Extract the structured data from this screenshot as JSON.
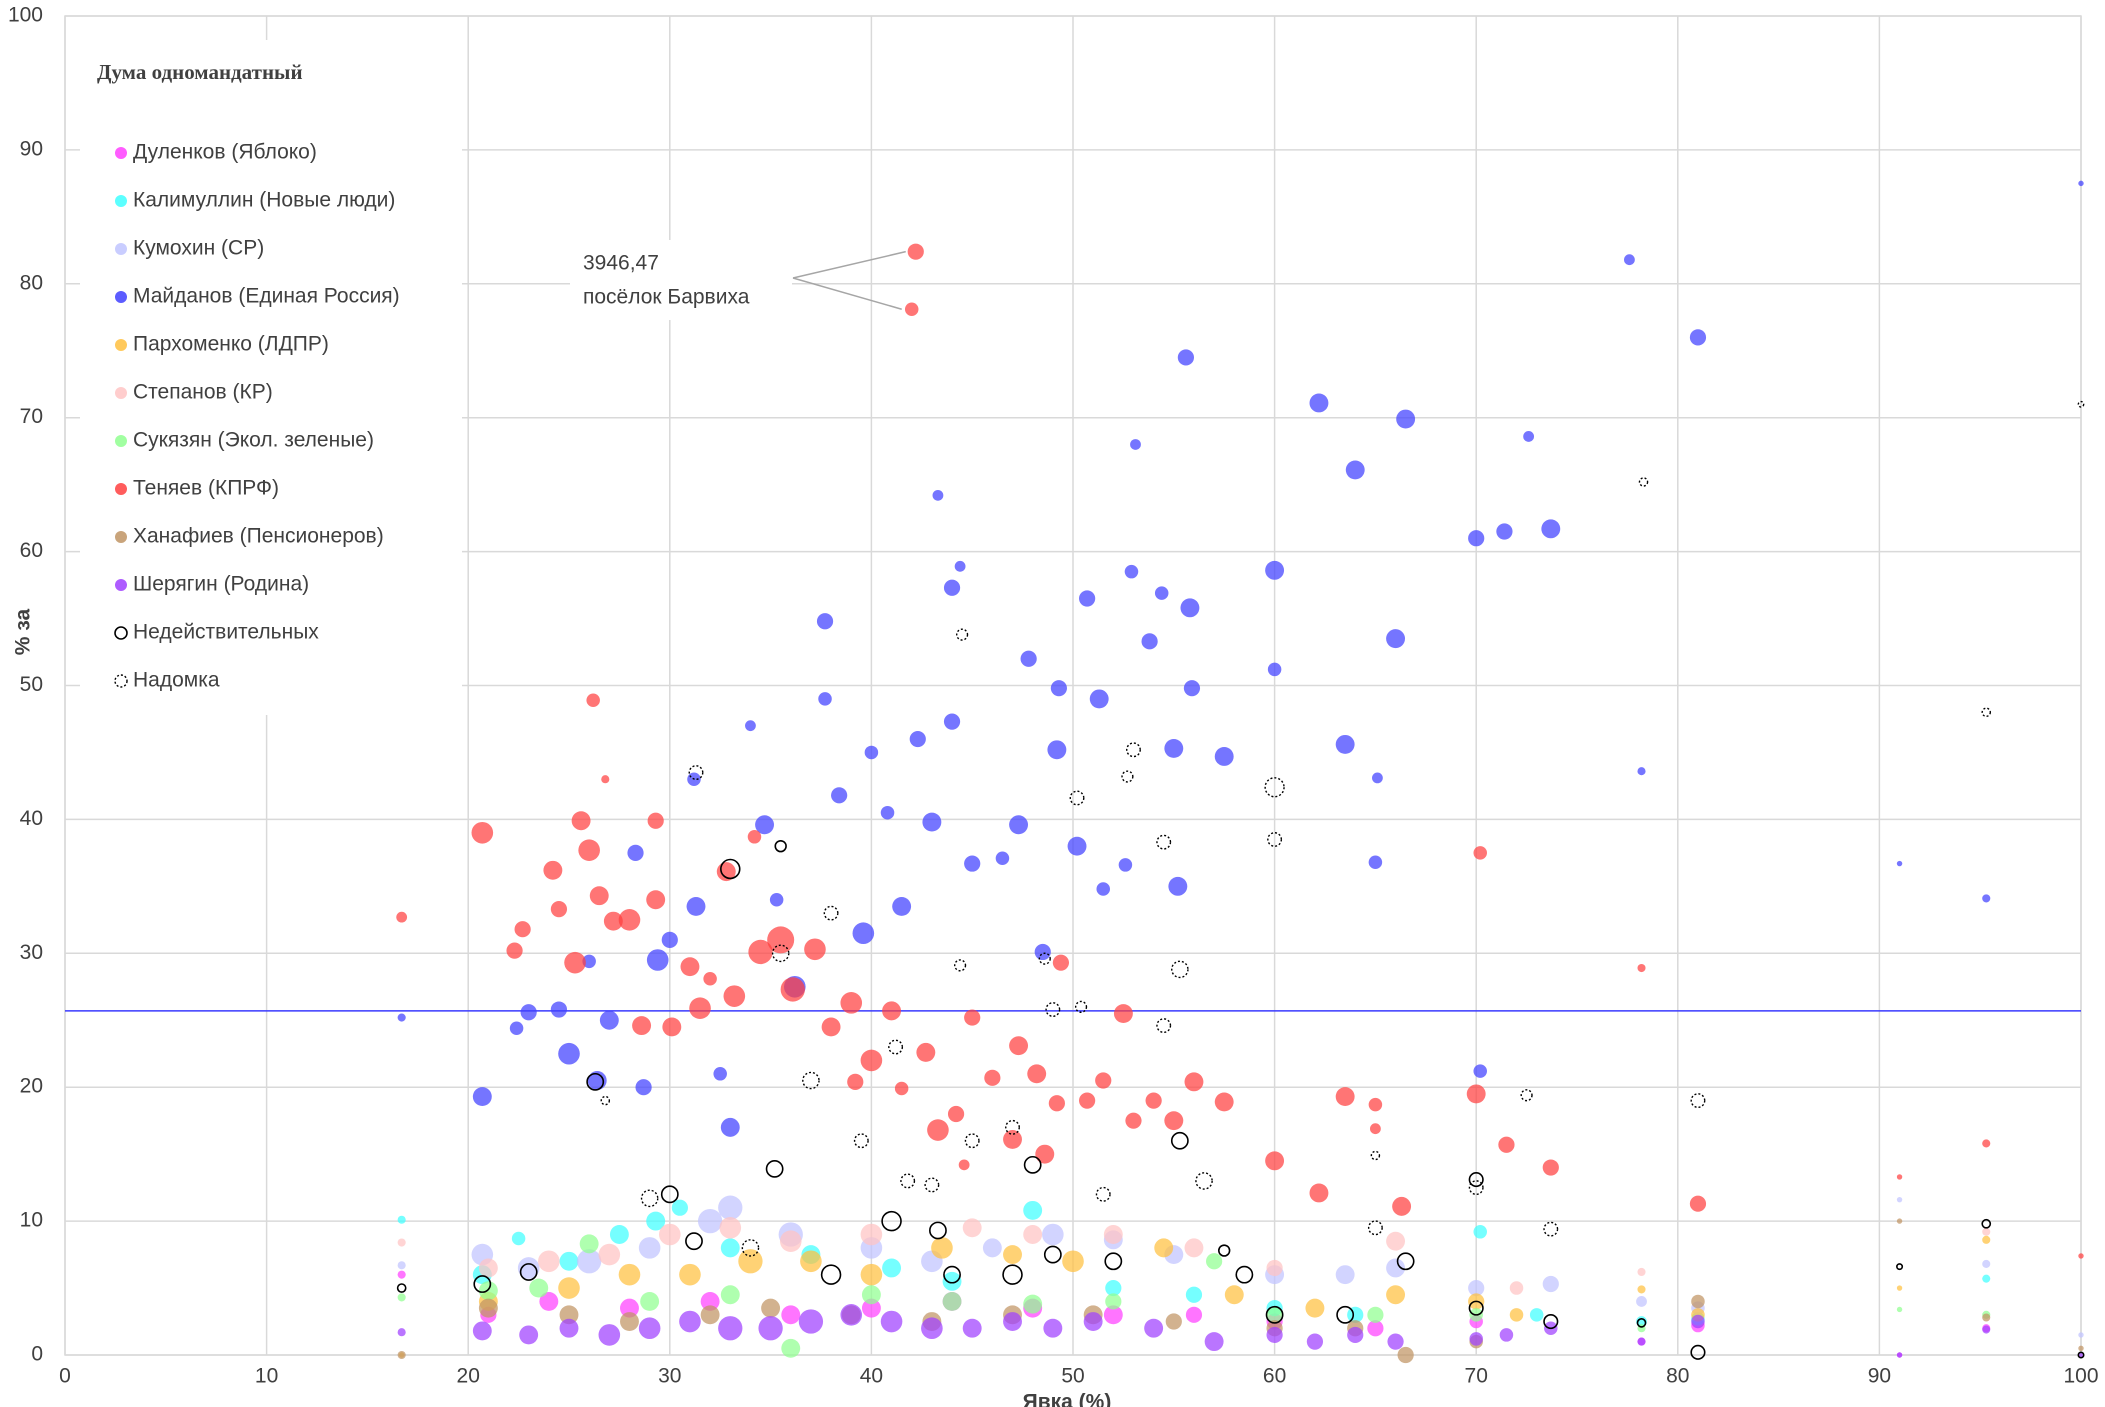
{
  "chart_data": {
    "type": "bubble",
    "title": "Дума одномандатный",
    "x_label": "Явка (%)",
    "y_label": "% за",
    "xlim": [
      0,
      100
    ],
    "ylim": [
      0,
      100
    ],
    "xticks": [
      0,
      10,
      20,
      30,
      40,
      50,
      60,
      70,
      80,
      90,
      100
    ],
    "yticks": [
      0,
      10,
      20,
      30,
      40,
      50,
      60,
      70,
      80,
      90,
      100
    ],
    "grid": true,
    "legend": "upper left",
    "reference_line": {
      "y": 25.7,
      "color": "#3a3aff"
    },
    "annotation": {
      "lines": [
        "3946,47",
        "посёлок Барвиха"
      ],
      "series": 7,
      "points": [
        34,
        35
      ]
    },
    "series": [
      {
        "name": "Дуленков (Яблоко)",
        "color": "#ff40ff",
        "marker": "filled",
        "x": [
          16.7,
          21,
          24,
          28,
          32,
          36,
          40,
          44,
          48,
          52,
          56,
          60,
          65,
          70,
          78.2,
          81,
          91,
          95.3
        ],
        "values": [
          6,
          3,
          4,
          3.5,
          4,
          3,
          3.5,
          4,
          3.5,
          3,
          3,
          2.5,
          2,
          2.5,
          1,
          2.2,
          0,
          2
        ],
        "sizes": [
          3,
          6,
          7,
          7,
          7,
          7,
          7,
          7,
          7,
          7,
          6,
          6,
          6,
          5,
          3,
          5,
          2,
          3
        ]
      },
      {
        "name": "Калимуллин (Новые люди)",
        "color": "#40ffff",
        "marker": "filled",
        "x": [
          16.7,
          20.7,
          22.5,
          25,
          27.5,
          29.3,
          30.5,
          33,
          37,
          41,
          44,
          48,
          52,
          56,
          60,
          64,
          70.2,
          73,
          78.2,
          81,
          95.3
        ],
        "values": [
          10.1,
          6,
          8.7,
          7,
          9,
          10,
          11,
          8,
          7.5,
          6.5,
          5.5,
          10.8,
          5,
          4.5,
          3.5,
          3,
          9.2,
          3,
          2.5,
          2.7,
          5.7
        ],
        "sizes": [
          3,
          7,
          5,
          7,
          7,
          7,
          6,
          7,
          7,
          7,
          7,
          7,
          6,
          6,
          6,
          6,
          5,
          5,
          4,
          5,
          3
        ]
      },
      {
        "name": "Кумохин (СР)",
        "color": "#c0c4ff",
        "marker": "filled",
        "x": [
          16.7,
          20.7,
          23,
          26,
          29,
          32,
          33,
          36,
          40,
          43,
          46,
          49,
          52,
          55,
          60,
          63.5,
          66,
          70,
          73.7,
          78.2,
          81,
          91,
          95.3,
          100
        ],
        "values": [
          6.7,
          7.5,
          6.5,
          7,
          8,
          10,
          11,
          9,
          8,
          7,
          8,
          9,
          8.6,
          7.5,
          6,
          6,
          6.5,
          5,
          5.3,
          4,
          3.5,
          11.6,
          6.8,
          1.5
        ],
        "sizes": [
          3,
          8,
          8,
          9,
          8,
          9,
          9,
          9,
          8,
          8,
          7,
          8,
          7,
          7,
          7,
          7,
          7,
          6,
          6,
          4,
          5,
          2,
          3,
          2
        ]
      },
      {
        "name": "Майданов (Единая Россия)",
        "color": "#4040ff",
        "marker": "filled",
        "x": [
          16.7,
          20.7,
          22.4,
          23,
          24.5,
          25,
          26,
          26.4,
          27,
          28.3,
          28.7,
          29.4,
          30,
          31.2,
          31.3,
          32.5,
          33,
          34,
          34.7,
          35.3,
          36.2,
          37.7,
          37.7,
          38.4,
          39.6,
          40,
          40.8,
          41.5,
          42.3,
          43,
          43.3,
          44,
          44,
          44.4,
          45,
          46.5,
          47.3,
          47.8,
          48.5,
          49.2,
          49.3,
          50.2,
          50.7,
          51.3,
          51.5,
          52.6,
          52.9,
          53.1,
          53.8,
          54.4,
          55,
          55.2,
          55.6,
          55.8,
          55.9,
          57.5,
          60,
          60,
          62.2,
          63.5,
          64,
          65.1,
          65,
          66,
          66.5,
          70,
          70.2,
          71.4,
          72.6,
          73.7,
          77.6,
          78.2,
          81,
          91,
          95.3,
          100
        ],
        "values": [
          25.2,
          19.3,
          24.4,
          25.6,
          25.8,
          22.5,
          29.4,
          20.5,
          25,
          37.5,
          20,
          29.5,
          31,
          43,
          33.5,
          21,
          17,
          47,
          39.6,
          34,
          27.5,
          54.8,
          49,
          41.8,
          31.5,
          45,
          40.5,
          33.5,
          46,
          39.8,
          64.2,
          57.3,
          47.3,
          58.9,
          36.7,
          37.1,
          39.6,
          52,
          30.1,
          45.2,
          49.8,
          38,
          56.5,
          49,
          34.8,
          36.6,
          58.5,
          68,
          53.3,
          56.9,
          45.3,
          35,
          74.5,
          55.8,
          49.8,
          44.7,
          58.6,
          51.2,
          71.1,
          45.6,
          66.1,
          43.1,
          36.8,
          53.5,
          69.9,
          61,
          21.2,
          61.5,
          68.6,
          61.7,
          81.8,
          43.6,
          76,
          36.7,
          34.1,
          87.5
        ],
        "sizes": [
          3,
          7,
          5,
          6,
          6,
          8,
          5,
          7,
          7,
          6,
          6,
          8,
          6,
          5,
          7,
          5,
          7,
          4,
          7,
          5,
          8,
          6,
          5,
          6,
          8,
          5,
          5,
          7,
          6,
          7,
          4,
          6,
          6,
          4,
          6,
          5,
          7,
          6,
          6,
          7,
          6,
          7,
          6,
          7,
          5,
          5,
          5,
          4,
          6,
          5,
          7,
          7,
          6,
          7,
          6,
          7,
          7,
          5,
          7,
          7,
          7,
          4,
          5,
          7,
          7,
          6,
          5,
          6,
          4,
          7,
          4,
          3,
          6,
          2,
          3,
          2
        ]
      },
      {
        "name": "Пархоменко (ЛДПР)",
        "color": "#ffc040",
        "marker": "filled",
        "x": [
          16.7,
          21,
          25,
          28,
          31,
          34,
          37,
          40,
          43.5,
          47,
          50,
          54.5,
          58,
          62,
          66,
          70,
          72,
          78.2,
          81,
          95.3,
          91
        ],
        "values": [
          0,
          4,
          5,
          6,
          6,
          7,
          7,
          6,
          8,
          7.5,
          7,
          8,
          4.5,
          3.5,
          4.5,
          4,
          3,
          4.9,
          3,
          8.6,
          5
        ],
        "sizes": [
          2,
          7,
          8,
          8,
          8,
          9,
          8,
          8,
          8,
          7,
          8,
          7,
          7,
          7,
          7,
          6,
          5,
          3,
          5,
          3,
          2
        ]
      },
      {
        "name": "Степанов (КР)",
        "color": "#ffc4c4",
        "marker": "filled",
        "x": [
          16.7,
          21,
          24,
          27,
          30,
          33,
          36,
          40,
          45,
          48,
          52,
          56,
          60,
          66,
          72,
          78.2,
          95.3
        ],
        "values": [
          8.4,
          6.5,
          7,
          7.5,
          9,
          9.5,
          8.5,
          9,
          9.5,
          9,
          9,
          8,
          6.5,
          8.5,
          5,
          6.2,
          9.2
        ],
        "sizes": [
          3,
          7,
          8,
          8,
          8,
          8,
          8,
          8,
          7,
          7,
          7,
          7,
          6,
          7,
          5,
          3,
          3
        ]
      },
      {
        "name": "Сукязян (Экол. зеленые)",
        "color": "#90ff90",
        "marker": "filled",
        "x": [
          16.7,
          21,
          23.5,
          26,
          29,
          33,
          36,
          40,
          44,
          48,
          52,
          57,
          60,
          65,
          70,
          78.2,
          91,
          95.3
        ],
        "values": [
          4.3,
          4.8,
          5,
          8.3,
          4,
          4.5,
          0.5,
          4.5,
          4,
          3.8,
          4,
          7,
          3,
          3,
          3,
          2,
          3.4,
          3
        ],
        "sizes": [
          3,
          7,
          7,
          7,
          7,
          7,
          7,
          7,
          7,
          7,
          6,
          6,
          6,
          6,
          5,
          3,
          2,
          3
        ]
      },
      {
        "name": "Теняев (КПРФ)",
        "color": "#ff4040",
        "marker": "filled",
        "x": [
          16.7,
          20.7,
          22.3,
          22.7,
          24.2,
          24.5,
          25.3,
          25.6,
          26,
          26.2,
          26.5,
          26.8,
          27.2,
          28,
          28.6,
          29.3,
          29.3,
          30.1,
          31,
          31.5,
          32,
          32.8,
          33.2,
          34.2,
          34.5,
          35.5,
          36.1,
          37.2,
          38,
          39,
          39.2,
          40,
          41,
          41.5,
          42.2,
          42,
          42.7,
          43.3,
          44.2,
          44.6,
          45,
          46,
          47,
          47.3,
          48.2,
          48.6,
          49.2,
          49.4,
          50.7,
          51.5,
          52.5,
          53,
          54,
          55,
          56,
          57.5,
          60,
          62.2,
          63.5,
          65,
          65,
          66.3,
          70,
          70.2,
          71.5,
          73.7,
          78.2,
          81,
          91,
          95.3,
          100
        ],
        "values": [
          32.7,
          39,
          30.2,
          31.8,
          36.2,
          33.3,
          29.3,
          39.9,
          37.7,
          48.9,
          34.3,
          43,
          32.4,
          32.5,
          24.6,
          39.9,
          34,
          24.5,
          29,
          25.9,
          28.1,
          36.1,
          26.8,
          38.7,
          30.1,
          31,
          27.3,
          30.3,
          24.5,
          26.3,
          20.4,
          22,
          25.7,
          19.9,
          82.4,
          78.1,
          22.6,
          16.8,
          18,
          14.2,
          25.2,
          20.7,
          16.1,
          23.1,
          21,
          15,
          18.8,
          29.3,
          19,
          20.5,
          25.5,
          17.5,
          19,
          17.5,
          20.4,
          18.9,
          14.5,
          12.1,
          19.3,
          18.7,
          16.9,
          11.1,
          19.5,
          37.5,
          15.7,
          14,
          28.9,
          11.3,
          13.3,
          15.8,
          7.4
        ],
        "sizes": [
          4,
          8,
          6,
          6,
          7,
          6,
          8,
          7,
          8,
          5,
          7,
          3,
          7,
          8,
          7,
          6,
          7,
          7,
          7,
          8,
          5,
          7,
          8,
          5,
          9,
          10,
          9,
          8,
          7,
          8,
          6,
          8,
          7,
          5,
          6,
          5,
          7,
          8,
          6,
          4,
          6,
          6,
          7,
          7,
          7,
          7,
          6,
          6,
          6,
          6,
          7,
          6,
          6,
          7,
          7,
          7,
          7,
          7,
          7,
          5,
          4,
          7,
          7,
          5,
          6,
          6,
          3,
          6,
          2,
          3,
          2
        ]
      },
      {
        "name": "Ханафиев (Пенсионеров)",
        "color": "#c09464",
        "marker": "filled",
        "x": [
          16.7,
          21,
          25,
          28,
          32,
          35,
          39,
          43,
          47,
          51,
          55,
          60,
          64,
          66.5,
          70,
          81,
          91,
          95.3,
          100
        ],
        "values": [
          0,
          3.5,
          3,
          2.5,
          3,
          3.5,
          3,
          2.5,
          3,
          3,
          2.5,
          2,
          2,
          0,
          1,
          4,
          10,
          2.8,
          0.5
        ],
        "sizes": [
          3,
          7,
          7,
          7,
          7,
          7,
          7,
          7,
          7,
          7,
          6,
          6,
          6,
          6,
          5,
          5,
          2,
          3,
          2
        ]
      },
      {
        "name": "Шерягин (Родина)",
        "color": "#a040ff",
        "marker": "filled",
        "x": [
          16.7,
          20.7,
          23,
          25,
          27,
          29,
          31,
          33,
          35,
          37,
          39,
          41,
          43,
          45,
          47,
          49,
          51,
          54,
          57,
          60,
          62,
          64,
          66,
          70,
          71.5,
          73.7,
          78.2,
          81,
          91,
          95.3,
          100
        ],
        "values": [
          1.7,
          1.8,
          1.5,
          2,
          1.5,
          2,
          2.5,
          2,
          2,
          2.5,
          3,
          2.5,
          2,
          2,
          2.5,
          2,
          2.5,
          2,
          1,
          1.5,
          1,
          1.5,
          1,
          1.2,
          1.5,
          2,
          1,
          2.5,
          0,
          1.9,
          0
        ],
        "sizes": [
          3,
          7,
          7,
          7,
          8,
          8,
          8,
          9,
          9,
          9,
          8,
          8,
          8,
          7,
          7,
          7,
          7,
          7,
          7,
          6,
          6,
          6,
          6,
          5,
          5,
          5,
          3,
          5,
          2,
          3,
          2
        ]
      },
      {
        "name": "Недействительных",
        "color": "#000000",
        "marker": "hollow",
        "x": [
          16.7,
          20.7,
          23,
          26.3,
          30,
          31.2,
          33,
          35.2,
          35.5,
          38,
          41,
          43.3,
          44,
          47,
          48,
          49,
          52,
          55.3,
          57.5,
          58.5,
          60,
          63.5,
          66.5,
          70,
          70,
          73.7,
          78.2,
          81,
          91,
          95.3,
          100
        ],
        "values": [
          5,
          5.3,
          6.2,
          20.4,
          12,
          8.5,
          36.3,
          13.9,
          38,
          6,
          10,
          9.3,
          6,
          6,
          14.2,
          7.5,
          7,
          16,
          7.8,
          6,
          3,
          3,
          7,
          13.1,
          3.5,
          2.5,
          2.4,
          0.2,
          6.6,
          9.8,
          0
        ],
        "sizes": [
          3,
          6,
          6,
          6,
          6,
          6,
          7,
          6,
          4,
          7,
          7,
          6,
          6,
          7,
          6,
          6,
          6,
          6,
          4,
          6,
          6,
          6,
          6,
          5,
          5,
          5,
          3,
          5,
          2,
          3,
          2
        ]
      },
      {
        "name": "Надомка",
        "color": "#000000",
        "marker": "hollow-dotted",
        "x": [
          26.8,
          29,
          31.3,
          34,
          35.5,
          37,
          38,
          39.5,
          41.2,
          41.8,
          43,
          44.5,
          44.4,
          45,
          47,
          48.6,
          49,
          50.2,
          50.4,
          51.5,
          52.7,
          53,
          54.5,
          54.5,
          55.3,
          56.5,
          60,
          60,
          65,
          65,
          70,
          72.5,
          73.7,
          78.3,
          81,
          95.3,
          100
        ],
        "values": [
          19,
          11.7,
          43.5,
          8,
          30,
          20.5,
          33,
          16,
          23,
          13,
          12.7,
          53.8,
          29.1,
          16,
          17,
          29.6,
          25.8,
          41.6,
          26,
          12,
          43.2,
          45.2,
          24.6,
          38.3,
          28.8,
          13,
          42.4,
          38.5,
          14.9,
          9.5,
          12.5,
          19.4,
          9.4,
          65.2,
          19,
          48,
          71
        ],
        "sizes": [
          3,
          6,
          5,
          6,
          6,
          6,
          5,
          5,
          5,
          5,
          5,
          4,
          4,
          5,
          5,
          4,
          5,
          5,
          4,
          5,
          4,
          5,
          5,
          5,
          6,
          6,
          7,
          5,
          3,
          5,
          5,
          4,
          5,
          3,
          5,
          3,
          2
        ]
      }
    ]
  }
}
